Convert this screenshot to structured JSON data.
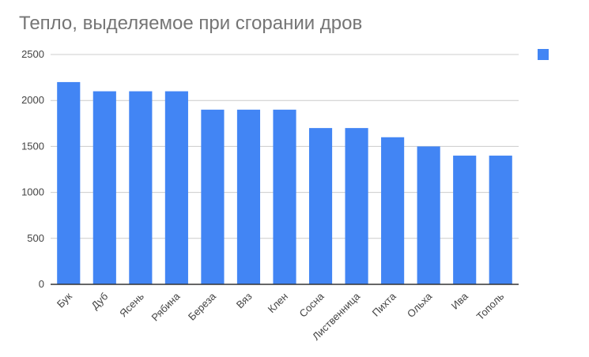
{
  "chart_data": {
    "type": "bar",
    "title": "Тепло, выделяемое при сгорании дров",
    "categories": [
      "Бук",
      "Дуб",
      "Ясень",
      "Рябина",
      "Береза",
      "Вяз",
      "Клен",
      "Сосна",
      "Лиственница",
      "Пихта",
      "Ольха",
      "Ива",
      "Тополь"
    ],
    "series": [
      {
        "values": [
          2200,
          2100,
          2100,
          2100,
          1900,
          1900,
          1900,
          1700,
          1700,
          1600,
          1500,
          1400,
          1400
        ],
        "color": "#4285f4"
      }
    ],
    "yticks": [
      "0",
      "500",
      "1000",
      "1500",
      "2000",
      "2500"
    ],
    "ylim": [
      0,
      2500
    ],
    "grid": true,
    "legend": "top-right",
    "axis_color": "#333333",
    "grid_color": "#cccccc"
  }
}
